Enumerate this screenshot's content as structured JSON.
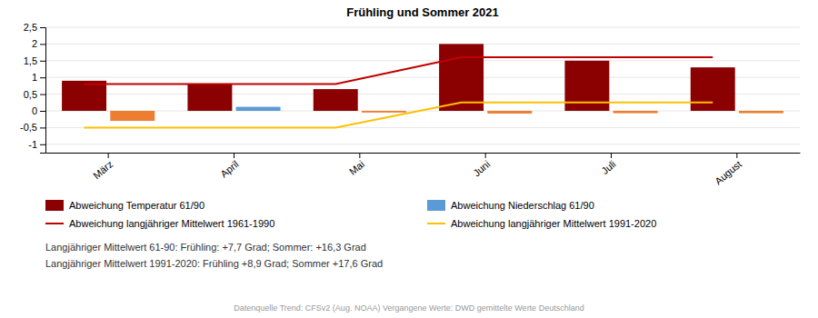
{
  "chart_data": {
    "type": "bar",
    "title": "Frühling und Sommer 2021",
    "categories": [
      "März",
      "April",
      "Mai",
      "Juni",
      "Juli",
      "August"
    ],
    "series": [
      {
        "name": "Abweichung Temperatur 61/90",
        "type": "bar",
        "color": "#8B0000",
        "values": [
          0.9,
          0.8,
          0.65,
          2.0,
          1.5,
          1.3
        ]
      },
      {
        "name": "Abweichung Niederschlag 61/90",
        "type": "bar",
        "color": "#5B9BD5",
        "values": [
          0.0,
          0.12,
          0.0,
          0.0,
          0.0,
          0.0
        ]
      },
      {
        "type": "bar",
        "color": "#ED7D31",
        "values": [
          -0.3,
          0.0,
          -0.05,
          -0.08,
          -0.07,
          -0.07
        ]
      },
      {
        "name": "Abweichung langjähriger Mittelwert 1961-1990",
        "type": "line",
        "color": "#C00000",
        "values": [
          0.8,
          0.8,
          0.8,
          1.6,
          1.6,
          1.6
        ]
      },
      {
        "name": "Abweichung langjähriger Mittelwert 1991-2020",
        "type": "line",
        "color": "#FFC000",
        "values": [
          -0.5,
          -0.5,
          -0.5,
          0.25,
          0.25,
          0.25
        ]
      }
    ],
    "ylim": [
      -1.25,
      2.5
    ],
    "yticks": [
      -1,
      {
        "value": -0.5,
        "label": "-0,5"
      },
      0,
      {
        "value": 0.5,
        "label": "0,5"
      },
      1,
      {
        "value": 1.5,
        "label": "1,5"
      },
      2,
      {
        "value": 2.5,
        "label": "2,5"
      }
    ],
    "grid": true,
    "annotations": [
      "Langjähriger Mittelwert 61-90: Frühling: +7,7 Grad; Sommer: +16,3 Grad",
      "Langjähriger Mittelwert 1991-2020: Frühling +8,9 Grad; Sommer +17,6 Grad",
      "Datenquelle Trend: CFSv2 (Aug. NOAA)   Vergangene Werte: DWD   gemittelte Werte Deutschland"
    ]
  }
}
